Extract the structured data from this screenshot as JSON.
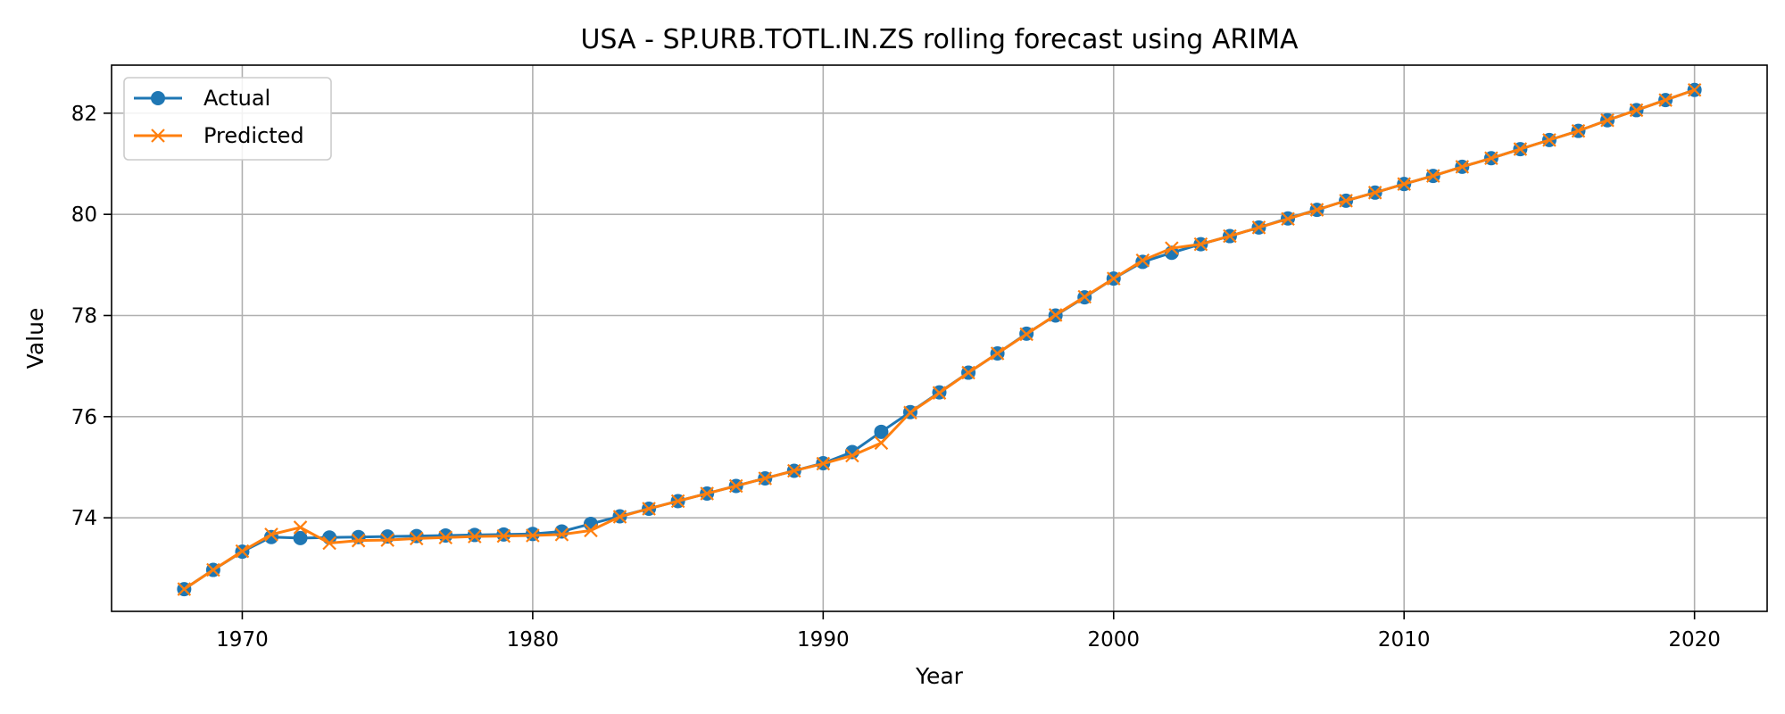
{
  "chart_data": {
    "type": "line",
    "title": "USA - SP.URB.TOTL.IN.ZS rolling forecast using ARIMA",
    "xlabel": "Year",
    "ylabel": "Value",
    "xlim": [
      1965.5,
      2022.5
    ],
    "ylim": [
      72.15,
      82.95
    ],
    "xticks": [
      1970,
      1980,
      1990,
      2000,
      2010,
      2020
    ],
    "yticks": [
      74,
      76,
      78,
      80,
      82
    ],
    "grid": true,
    "legend_position": "upper-left",
    "x": [
      1968,
      1969,
      1970,
      1971,
      1972,
      1973,
      1974,
      1975,
      1976,
      1977,
      1978,
      1979,
      1980,
      1981,
      1982,
      1983,
      1984,
      1985,
      1986,
      1987,
      1988,
      1989,
      1990,
      1991,
      1992,
      1993,
      1994,
      1995,
      1996,
      1997,
      1998,
      1999,
      2000,
      2001,
      2002,
      2003,
      2004,
      2005,
      2006,
      2007,
      2008,
      2009,
      2010,
      2011,
      2012,
      2013,
      2014,
      2015,
      2016,
      2017,
      2018,
      2019,
      2020
    ],
    "series": [
      {
        "name": "Actual",
        "color": "#1f77b4",
        "marker": "circle",
        "values": [
          72.59,
          72.97,
          73.33,
          73.62,
          73.6,
          73.61,
          73.62,
          73.63,
          73.64,
          73.65,
          73.66,
          73.67,
          73.68,
          73.73,
          73.88,
          74.03,
          74.18,
          74.33,
          74.48,
          74.63,
          74.78,
          74.93,
          75.08,
          75.3,
          75.7,
          76.09,
          76.48,
          76.87,
          77.25,
          77.64,
          78.0,
          78.36,
          78.73,
          79.06,
          79.24,
          79.41,
          79.57,
          79.74,
          79.92,
          80.09,
          80.27,
          80.43,
          80.6,
          80.76,
          80.94,
          81.11,
          81.29,
          81.47,
          81.65,
          81.86,
          82.06,
          82.26,
          82.46
        ]
      },
      {
        "name": "Predicted",
        "color": "#ff7f0e",
        "marker": "x",
        "values": [
          72.59,
          72.97,
          73.34,
          73.67,
          73.81,
          73.5,
          73.55,
          73.56,
          73.59,
          73.61,
          73.63,
          73.64,
          73.65,
          73.67,
          73.75,
          74.02,
          74.18,
          74.33,
          74.48,
          74.63,
          74.78,
          74.93,
          75.07,
          75.23,
          75.48,
          76.08,
          76.47,
          76.87,
          77.25,
          77.63,
          78.01,
          78.37,
          78.73,
          79.09,
          79.33,
          79.41,
          79.57,
          79.74,
          79.91,
          80.09,
          80.27,
          80.43,
          80.6,
          80.76,
          80.94,
          81.11,
          81.29,
          81.47,
          81.65,
          81.86,
          82.06,
          82.26,
          82.46
        ]
      }
    ]
  }
}
